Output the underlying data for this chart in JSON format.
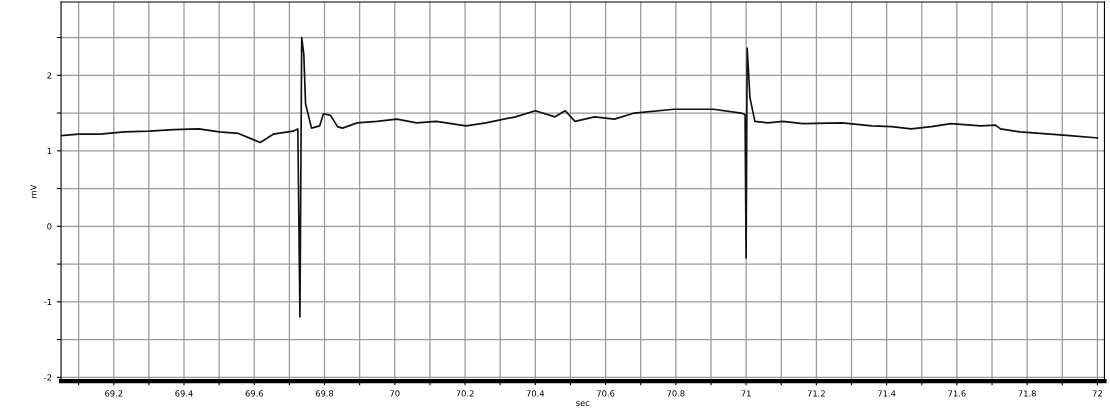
{
  "chart_data": {
    "type": "line",
    "xlabel": "sec",
    "ylabel": "mV",
    "series": [
      {
        "color": "#111111",
        "x": [
          69.05,
          69.1,
          69.161,
          69.23,
          69.301,
          69.37,
          69.442,
          69.5,
          69.555,
          69.617,
          69.654,
          69.71,
          69.724,
          69.73,
          69.735,
          69.741,
          69.746,
          69.763,
          69.786,
          69.797,
          69.817,
          69.837,
          69.851,
          69.893,
          69.949,
          70.006,
          70.062,
          70.118,
          70.203,
          70.259,
          70.344,
          70.4,
          70.456,
          70.485,
          70.513,
          70.569,
          70.625,
          70.682,
          70.794,
          70.907,
          70.986,
          70.997,
          71.0,
          71.003,
          71.011,
          71.025,
          71.062,
          71.104,
          71.161,
          71.273,
          71.358,
          71.414,
          71.47,
          71.527,
          71.583,
          71.668,
          71.71,
          71.724,
          71.78,
          71.865,
          71.921,
          72.0
        ],
        "values": [
          1.2,
          1.22,
          1.22,
          1.25,
          1.26,
          1.28,
          1.29,
          1.25,
          1.23,
          1.11,
          1.22,
          1.26,
          1.29,
          -1.2,
          2.5,
          2.28,
          1.62,
          1.3,
          1.33,
          1.49,
          1.47,
          1.32,
          1.3,
          1.37,
          1.39,
          1.42,
          1.37,
          1.39,
          1.33,
          1.37,
          1.45,
          1.53,
          1.45,
          1.53,
          1.39,
          1.45,
          1.42,
          1.5,
          1.55,
          1.55,
          1.5,
          1.48,
          -0.42,
          2.36,
          1.7,
          1.39,
          1.37,
          1.39,
          1.36,
          1.37,
          1.33,
          1.32,
          1.29,
          1.32,
          1.36,
          1.33,
          1.34,
          1.29,
          1.25,
          1.22,
          1.2,
          1.17
        ]
      }
    ],
    "xlim": [
      69.05,
      72.02
    ],
    "ylim": [
      -2.05,
      2.97
    ],
    "xticks": [
      {
        "value": 69.1,
        "label": null
      },
      69.2,
      {
        "value": 69.3,
        "label": null
      },
      69.4,
      {
        "value": 69.5,
        "label": null
      },
      69.6,
      {
        "value": 69.7,
        "label": null
      },
      69.8,
      {
        "value": 69.9,
        "label": null
      },
      70,
      {
        "value": 70.1,
        "label": null
      },
      70.2,
      {
        "value": 70.3,
        "label": null
      },
      70.4,
      {
        "value": 70.5,
        "label": null
      },
      70.6,
      {
        "value": 70.7,
        "label": null
      },
      70.8,
      {
        "value": 70.9,
        "label": null
      },
      71,
      {
        "value": 71.1,
        "label": null
      },
      71.2,
      {
        "value": 71.3,
        "label": null
      },
      71.4,
      {
        "value": 71.5,
        "label": null
      },
      71.6,
      {
        "value": 71.7,
        "label": null
      },
      71.8,
      {
        "value": 71.9,
        "label": null
      },
      72
    ],
    "yticks": [
      -2,
      {
        "value": -1.5,
        "label": null
      },
      -1,
      {
        "value": -0.5,
        "label": null
      },
      0,
      {
        "value": 0.5,
        "label": null
      },
      1,
      {
        "value": 1.5,
        "label": null
      },
      2,
      {
        "value": 2.5,
        "label": null
      }
    ],
    "grid": true,
    "marker": "none",
    "line_style": "solid"
  }
}
